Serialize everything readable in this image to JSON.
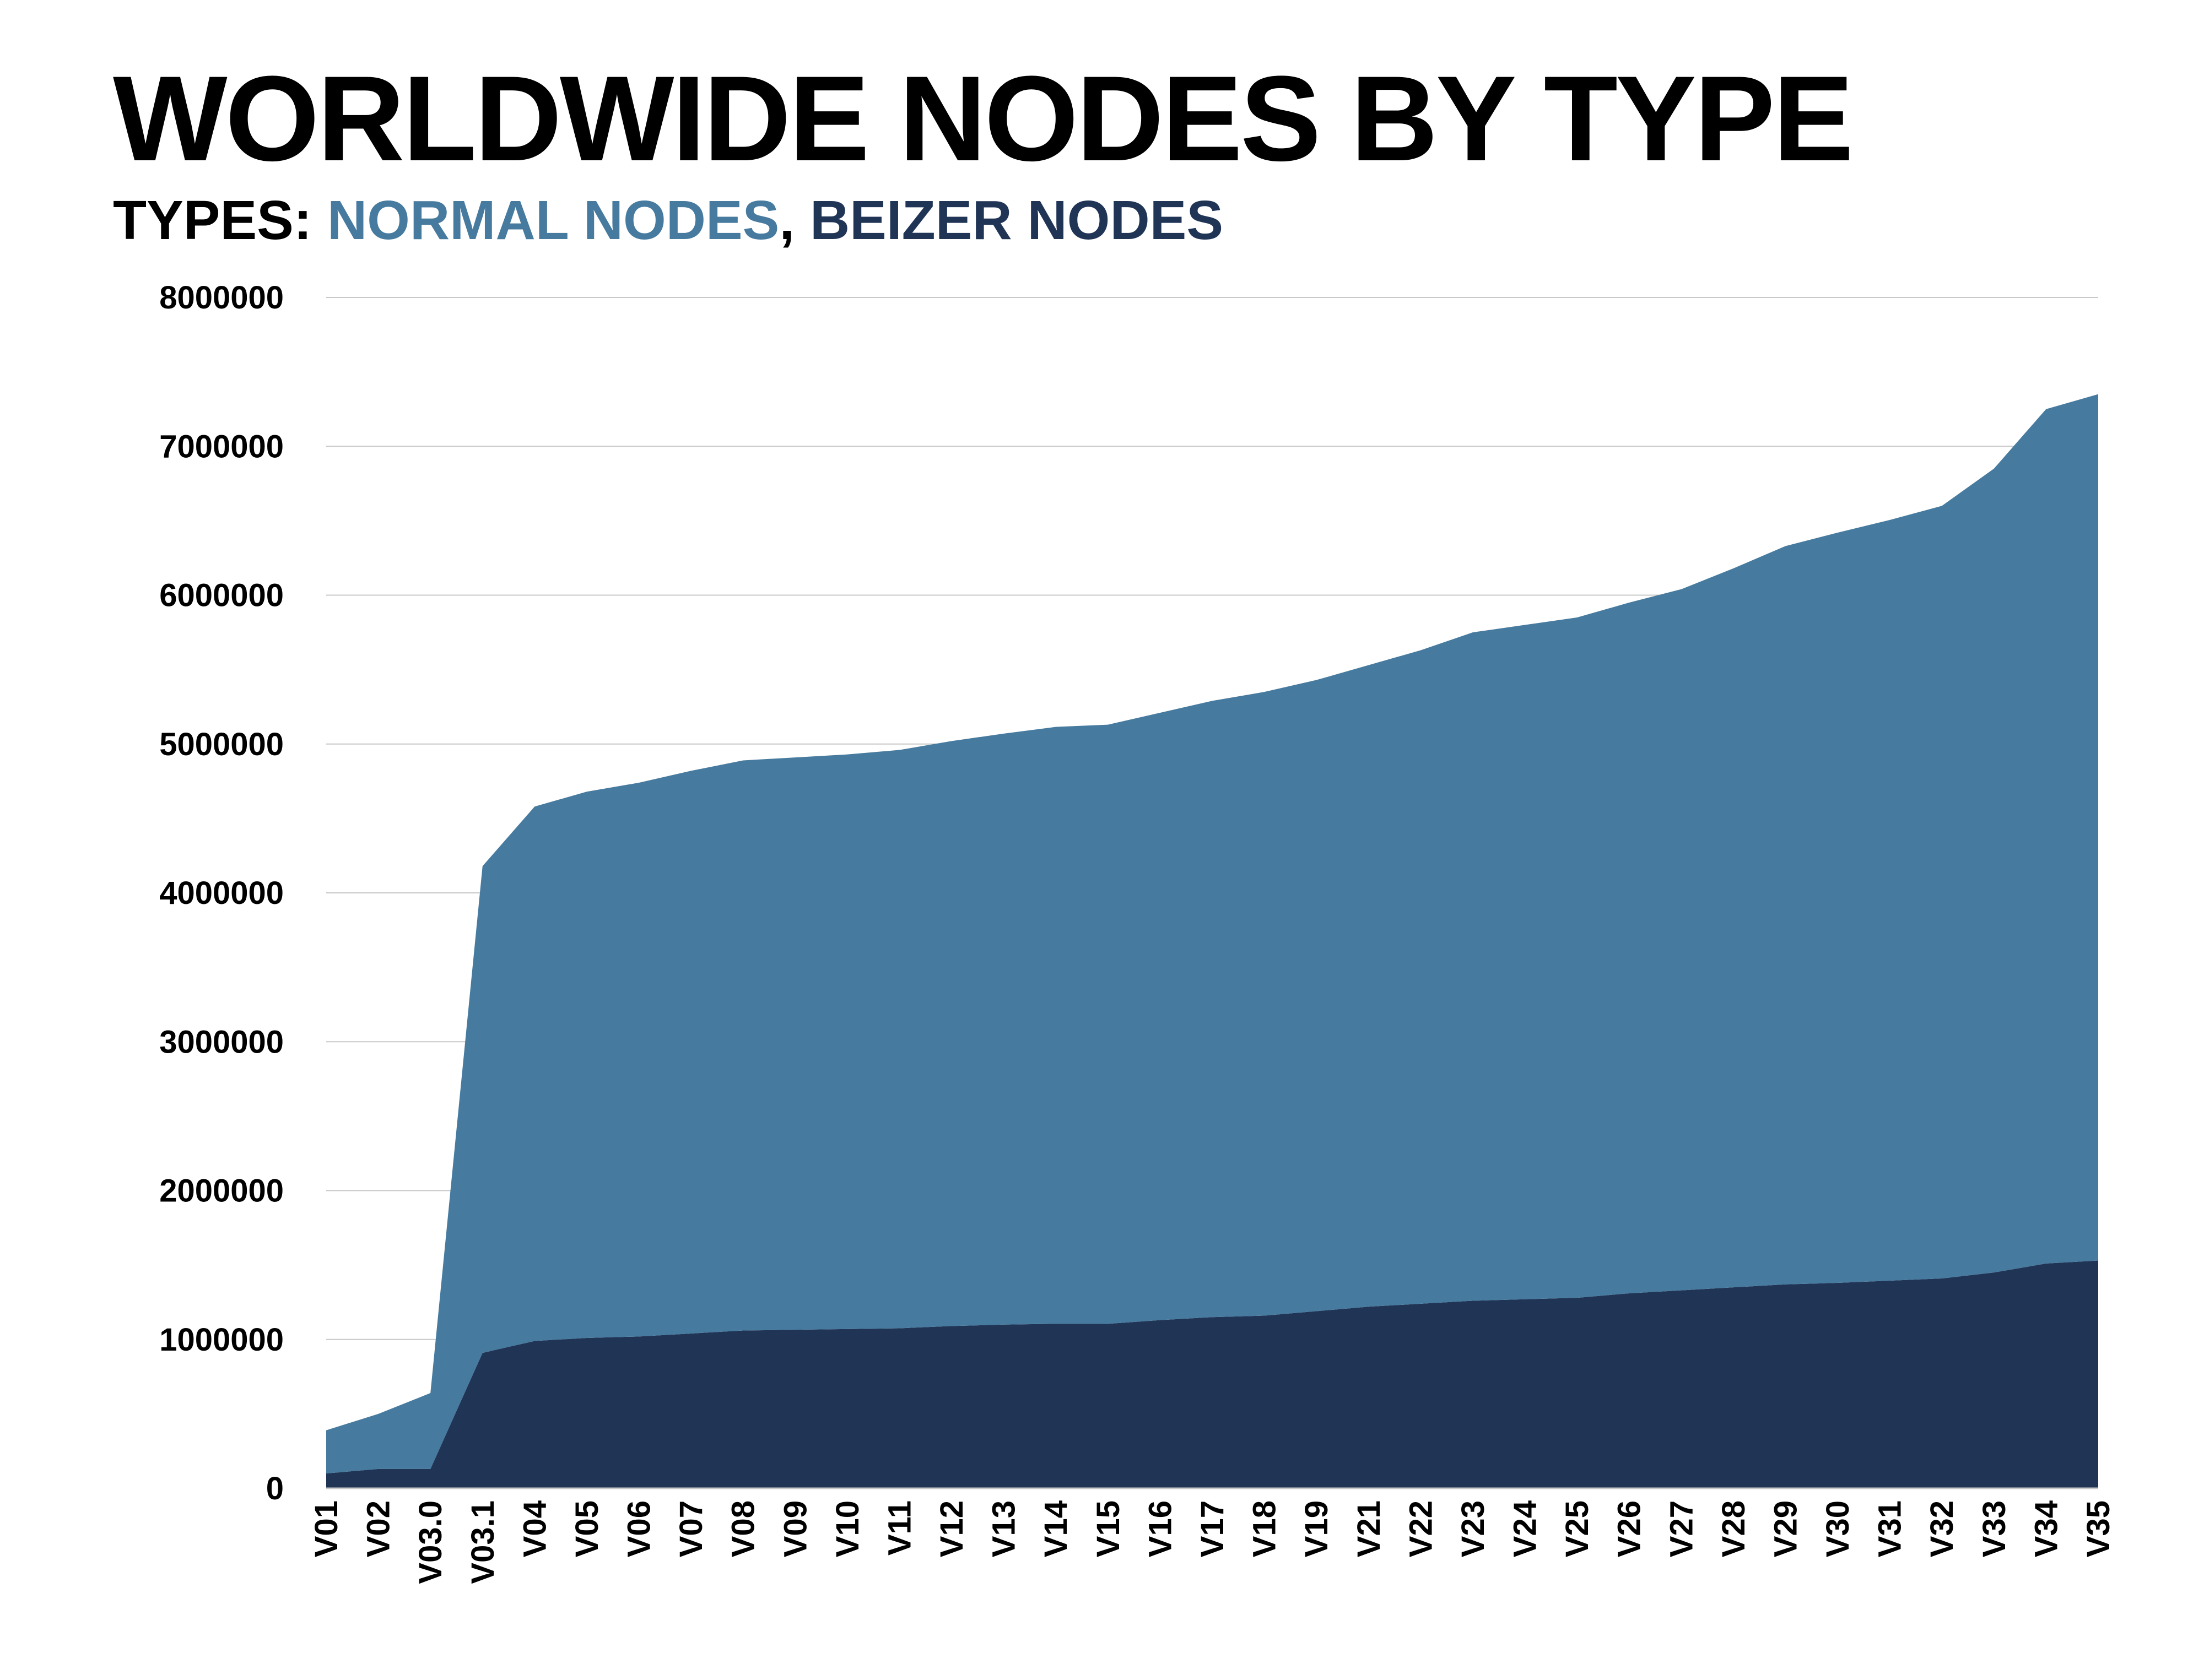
{
  "colors": {
    "normal": "#467a9e",
    "beizer": "#203456",
    "grid": "#c8c8c8",
    "text": "#000000"
  },
  "chart_data": {
    "type": "area",
    "stacked": true,
    "title": "WORLDWIDE NODES BY TYPE",
    "subtitle": {
      "prefix": "TYPES: ",
      "separator": ", "
    },
    "ylim": [
      0,
      8000000
    ],
    "yticks": [
      0,
      1000000,
      2000000,
      3000000,
      4000000,
      5000000,
      6000000,
      7000000,
      8000000
    ],
    "grid": true,
    "categories": [
      "V01",
      "V02",
      "V03.0",
      "V03.1",
      "V04",
      "V05",
      "V06",
      "V07",
      "V08",
      "V09",
      "V10",
      "V11",
      "V12",
      "V13",
      "V14",
      "V15",
      "V16",
      "V17",
      "V18",
      "V19",
      "V21",
      "V22",
      "V23",
      "V24",
      "V25",
      "V26",
      "V27",
      "V28",
      "V29",
      "V30",
      "V31",
      "V32",
      "V33",
      "V34",
      "V35"
    ],
    "series": [
      {
        "name": "BEIZER NODES",
        "color": "#203456",
        "values": [
          100000,
          130000,
          130000,
          910000,
          990000,
          1010000,
          1020000,
          1040000,
          1060000,
          1065000,
          1070000,
          1075000,
          1090000,
          1100000,
          1105000,
          1105000,
          1130000,
          1150000,
          1160000,
          1190000,
          1220000,
          1240000,
          1260000,
          1270000,
          1280000,
          1310000,
          1330000,
          1350000,
          1370000,
          1380000,
          1395000,
          1410000,
          1450000,
          1510000,
          1530000
        ]
      },
      {
        "name": "NORMAL NODES",
        "color": "#467a9e",
        "values": [
          290000,
          370000,
          510000,
          3270000,
          3590000,
          3670000,
          3720000,
          3780000,
          3830000,
          3845000,
          3860000,
          3885000,
          3930000,
          3970000,
          4010000,
          4025000,
          4080000,
          4140000,
          4190000,
          4240000,
          4310000,
          4390000,
          4490000,
          4530000,
          4570000,
          4640000,
          4710000,
          4830000,
          4960000,
          5040000,
          5110000,
          5190000,
          5400000,
          5740000,
          5820000
        ]
      }
    ]
  }
}
